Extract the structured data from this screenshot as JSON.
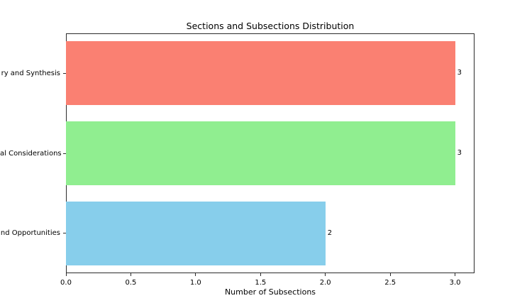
{
  "chart_data": {
    "type": "bar",
    "orientation": "horizontal",
    "title": "Sections and Subsections Distribution",
    "xlabel": "Number of Subsections",
    "categories": [
      "ry and Synthesis",
      "al Considerations",
      "nd Opportunities"
    ],
    "values": [
      3,
      3,
      2
    ],
    "bar_labels": [
      "3",
      "3",
      "2"
    ],
    "colors": [
      "#fa8072",
      "#90ee90",
      "#87ceeb"
    ],
    "xlim": [
      0,
      3.15
    ],
    "xticks": [
      0.0,
      0.5,
      1.0,
      1.5,
      2.0,
      2.5,
      3.0
    ],
    "xtick_labels": [
      "0.0",
      "0.5",
      "1.0",
      "1.5",
      "2.0",
      "2.5",
      "3.0"
    ],
    "grid": false,
    "legend": false,
    "bar_height_fraction": 0.8,
    "background_color": "#ffffff",
    "text_color": "#000000",
    "axis_color": "#2b2b2b"
  }
}
